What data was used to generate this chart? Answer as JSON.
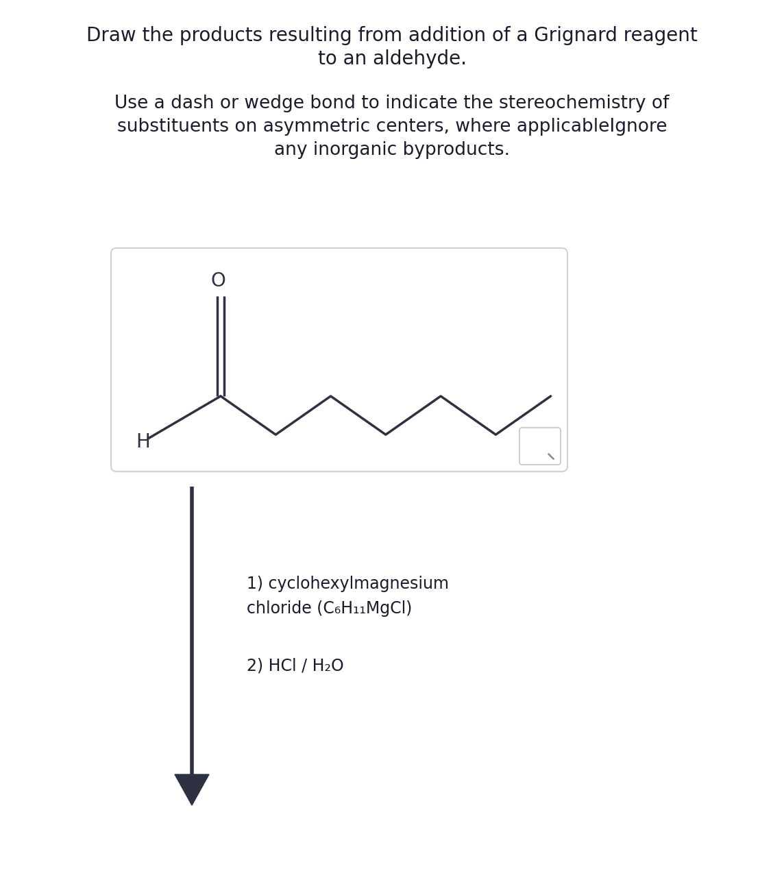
{
  "title_line1": "Draw the products resulting from addition of a Grignard reagent",
  "title_line2": "to an aldehyde.",
  "subtitle_line1": "Use a dash or wedge bond to indicate the stereochemistry of",
  "subtitle_line2": "substituents on asymmetric centers, where applicableIgnore",
  "subtitle_line3": "any inorganic byproducts.",
  "reagent_line1": "1) cyclohexylmagnesium",
  "reagent_line2": "chloride (C₆H₁₁MgCl)",
  "reagent_line3": "2) HCl / H₂O",
  "bg_color": "#ffffff",
  "text_color": "#1a1a2e",
  "bond_color": "#2d3142",
  "font_size_title": 20,
  "font_size_subtitle": 19,
  "font_size_reagent": 17,
  "font_size_atom": 17
}
